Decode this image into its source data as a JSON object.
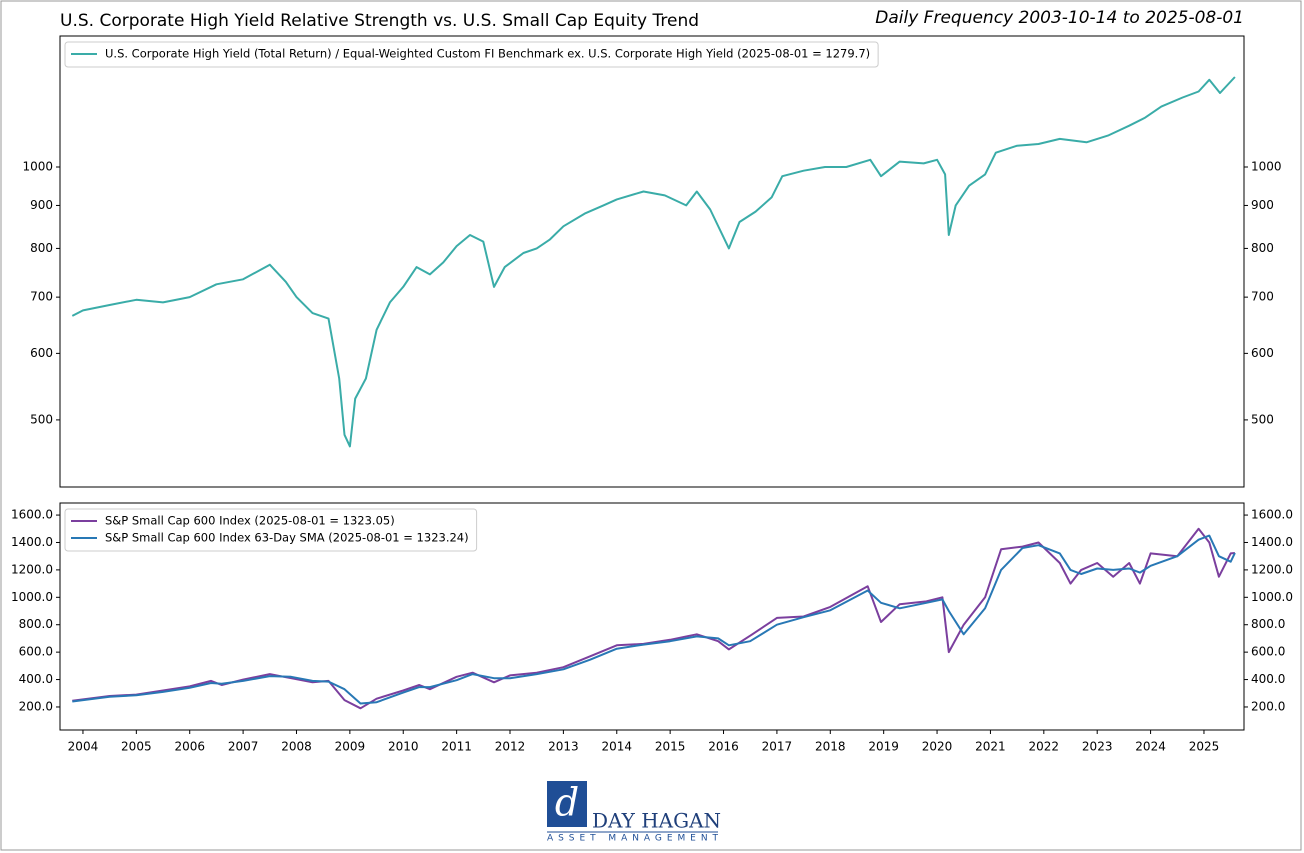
{
  "chart_data": [
    {
      "type": "line",
      "title": "U.S. Corporate High Yield Relative Strength vs. U.S. Small Cap Equity Trend",
      "subtitle": "Daily Frequency 2003-10-14 to 2025-08-01",
      "log_y": true,
      "legend": "upper left",
      "x": [
        2003.8,
        2004.0,
        2004.5,
        2005.0,
        2005.5,
        2006.0,
        2006.5,
        2007.0,
        2007.5,
        2007.8,
        2008.0,
        2008.3,
        2008.6,
        2008.8,
        2008.9,
        2009.0,
        2009.1,
        2009.3,
        2009.5,
        2009.75,
        2010.0,
        2010.25,
        2010.5,
        2010.75,
        2011.0,
        2011.25,
        2011.5,
        2011.7,
        2011.9,
        2012.25,
        2012.5,
        2012.75,
        2013.0,
        2013.4,
        2013.75,
        2014.0,
        2014.5,
        2014.9,
        2015.3,
        2015.5,
        2015.75,
        2016.1,
        2016.3,
        2016.6,
        2016.9,
        2017.1,
        2017.5,
        2017.9,
        2018.3,
        2018.75,
        2018.95,
        2019.3,
        2019.75,
        2020.0,
        2020.15,
        2020.22,
        2020.35,
        2020.6,
        2020.9,
        2021.1,
        2021.5,
        2021.9,
        2022.3,
        2022.8,
        2023.2,
        2023.6,
        2023.9,
        2024.2,
        2024.6,
        2024.9,
        2025.1,
        2025.3,
        2025.58
      ],
      "series": [
        {
          "name": "U.S. Corporate High Yield (Total Return) / Equal-Weighted Custom FI Benchmark ex. U.S. Corporate High Yield (2025-08-01 = 1279.7)",
          "color": "#3aaca8",
          "values": [
            665,
            675,
            685,
            695,
            690,
            700,
            725,
            735,
            765,
            730,
            700,
            670,
            660,
            560,
            480,
            465,
            530,
            560,
            640,
            690,
            720,
            760,
            745,
            770,
            805,
            830,
            815,
            720,
            760,
            790,
            800,
            820,
            850,
            880,
            900,
            915,
            935,
            925,
            900,
            935,
            890,
            800,
            860,
            885,
            920,
            975,
            990,
            1000,
            1000,
            1020,
            975,
            1015,
            1010,
            1020,
            980,
            830,
            900,
            950,
            980,
            1040,
            1060,
            1065,
            1080,
            1070,
            1090,
            1120,
            1145,
            1180,
            1210,
            1230,
            1270,
            1225,
            1279.7
          ]
        }
      ],
      "xlim": [
        2003.57,
        2025.75
      ],
      "ylim": [
        416,
        1432
      ],
      "yticks": [
        500,
        600,
        700,
        800,
        900,
        1000
      ]
    },
    {
      "type": "line",
      "legend": "upper left",
      "x": [
        2003.8,
        2004.5,
        2005.0,
        2005.5,
        2006.0,
        2006.4,
        2006.6,
        2007.0,
        2007.5,
        2007.9,
        2008.3,
        2008.6,
        2008.9,
        2009.2,
        2009.5,
        2010.0,
        2010.3,
        2010.5,
        2011.0,
        2011.3,
        2011.7,
        2012.0,
        2012.5,
        2013.0,
        2013.5,
        2014.0,
        2014.5,
        2015.0,
        2015.5,
        2015.9,
        2016.1,
        2016.5,
        2017.0,
        2017.5,
        2018.0,
        2018.7,
        2018.95,
        2019.3,
        2019.8,
        2020.1,
        2020.22,
        2020.5,
        2020.9,
        2021.2,
        2021.6,
        2021.9,
        2022.3,
        2022.5,
        2022.7,
        2023.0,
        2023.3,
        2023.6,
        2023.8,
        2024.0,
        2024.5,
        2024.9,
        2025.1,
        2025.28,
        2025.5,
        2025.58
      ],
      "series": [
        {
          "name": "S&P Small Cap 600 Index (2025-08-01 = 1323.05)",
          "color": "#7b3f9e",
          "values": [
            245,
            280,
            290,
            320,
            350,
            390,
            360,
            400,
            440,
            410,
            380,
            390,
            250,
            190,
            260,
            320,
            360,
            330,
            420,
            450,
            380,
            430,
            450,
            490,
            570,
            650,
            660,
            690,
            730,
            680,
            620,
            720,
            850,
            860,
            930,
            1080,
            820,
            950,
            970,
            1000,
            600,
            800,
            1000,
            1350,
            1370,
            1400,
            1250,
            1100,
            1200,
            1250,
            1150,
            1250,
            1100,
            1320,
            1300,
            1500,
            1400,
            1150,
            1320,
            1323.05
          ]
        },
        {
          "name": "S&P Small Cap 600 Index 63-Day SMA (2025-08-01 = 1323.24)",
          "color": "#2878b5",
          "values": [
            240,
            275,
            285,
            310,
            340,
            375,
            370,
            390,
            425,
            420,
            390,
            385,
            330,
            225,
            235,
            305,
            345,
            345,
            395,
            440,
            410,
            410,
            440,
            475,
            545,
            625,
            655,
            680,
            715,
            700,
            650,
            680,
            800,
            855,
            905,
            1050,
            960,
            920,
            960,
            985,
            900,
            730,
            920,
            1200,
            1360,
            1380,
            1320,
            1200,
            1170,
            1210,
            1200,
            1210,
            1180,
            1230,
            1300,
            1420,
            1450,
            1300,
            1260,
            1323.24
          ]
        }
      ],
      "xlim": [
        2003.57,
        2025.75
      ],
      "ylim": [
        32,
        1688
      ],
      "xticks": [
        2004,
        2005,
        2006,
        2007,
        2008,
        2009,
        2010,
        2011,
        2012,
        2013,
        2014,
        2015,
        2016,
        2017,
        2018,
        2019,
        2020,
        2021,
        2022,
        2023,
        2024,
        2025
      ],
      "yticks": [
        {
          "value": 200,
          "label": "200.0"
        },
        {
          "value": 400,
          "label": "400.0"
        },
        {
          "value": 600,
          "label": "600.0"
        },
        {
          "value": 800,
          "label": "800.0"
        },
        {
          "value": 1000,
          "label": "1000.0"
        },
        {
          "value": 1200,
          "label": "1200.0"
        },
        {
          "value": 1400,
          "label": "1400.0"
        },
        {
          "value": 1600,
          "label": "1600.0"
        }
      ]
    }
  ],
  "logo": {
    "name": "DAY HAGAN",
    "tagline": "ASSET MANAGEMENT"
  }
}
